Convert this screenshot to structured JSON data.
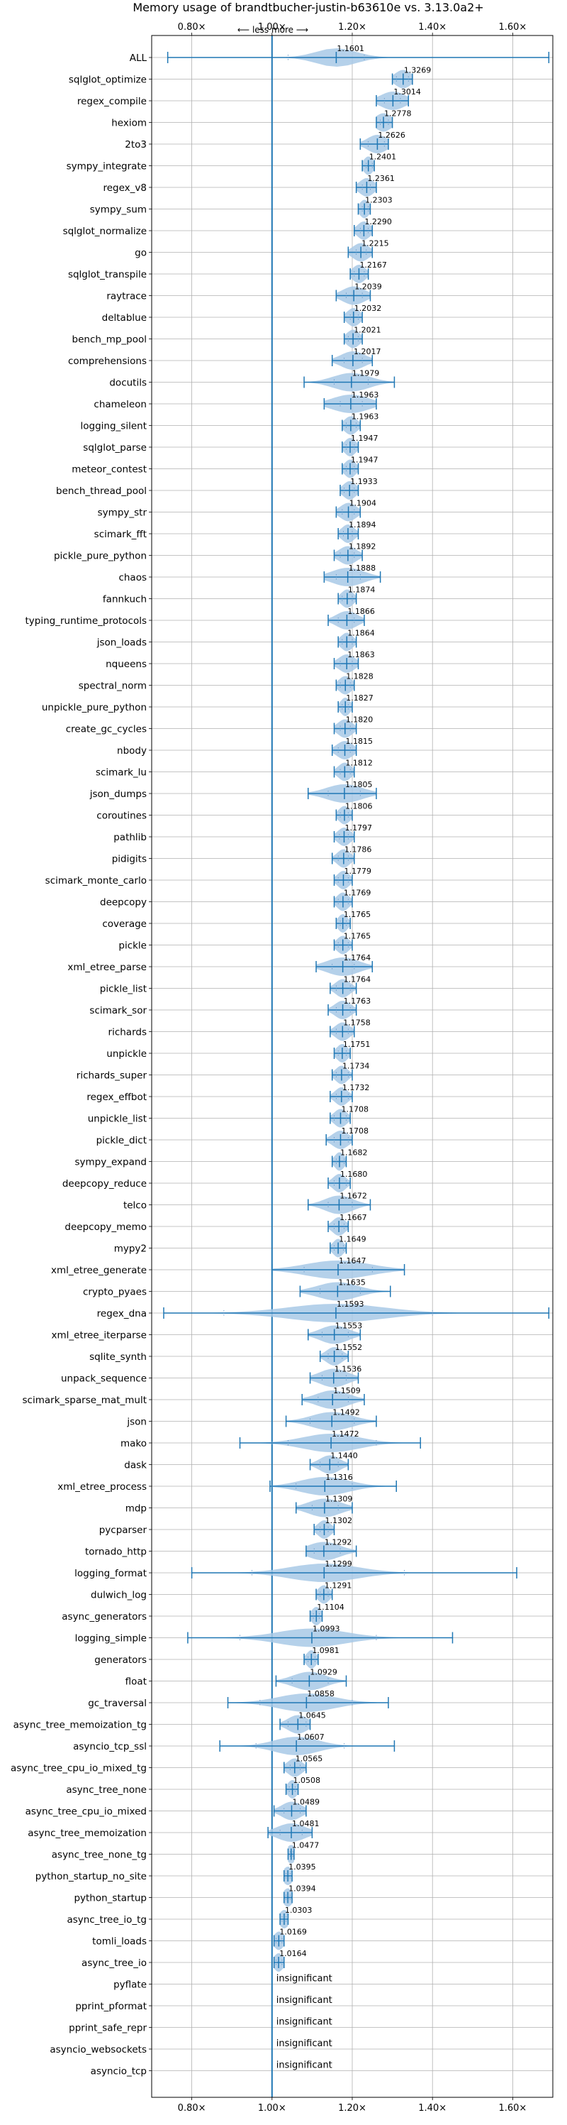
{
  "chart_data": {
    "type": "violin",
    "title": "Memory usage of brandtbucher-justin-b63610e vs. 3.13.0a2+",
    "direction_label": "⟵ less  more ⟶",
    "xlim": [
      0.7,
      1.7
    ],
    "ticks": [
      0.8,
      1.0,
      1.2,
      1.4,
      1.6
    ],
    "tick_labels": [
      "0.80×",
      "1.00×",
      "1.20×",
      "1.40×",
      "1.60×"
    ],
    "reference_x": 1.0,
    "insignificant_label": "insignificant",
    "colors": {
      "line": "#1f77b4",
      "fill": "#a8c9e6",
      "grid": "#b0b0b0",
      "text": "#000000"
    },
    "benchmarks": [
      {
        "name": "ALL",
        "value": 1.1601,
        "label": "1.1601",
        "min": 0.74,
        "max": 1.69,
        "q1": 1.04,
        "q3": 1.23,
        "spread": 0.05
      },
      {
        "name": "sqlglot_optimize",
        "value": 1.3269,
        "label": "1.3269",
        "min": 1.3,
        "max": 1.35,
        "q1": 1.31,
        "q3": 1.34,
        "spread": 0.02
      },
      {
        "name": "regex_compile",
        "value": 1.3014,
        "label": "1.3014",
        "min": 1.26,
        "max": 1.34,
        "q1": 1.28,
        "q3": 1.32,
        "spread": 0.03
      },
      {
        "name": "hexiom",
        "value": 1.2778,
        "label": "1.2778",
        "min": 1.26,
        "max": 1.3,
        "q1": 1.27,
        "q3": 1.29,
        "spread": 0.02
      },
      {
        "name": "2to3",
        "value": 1.2626,
        "label": "1.2626",
        "min": 1.22,
        "max": 1.29,
        "q1": 1.24,
        "q3": 1.28,
        "spread": 0.025
      },
      {
        "name": "sympy_integrate",
        "value": 1.2401,
        "label": "1.2401",
        "min": 1.225,
        "max": 1.255,
        "q1": 1.235,
        "q3": 1.25,
        "spread": 0.012
      },
      {
        "name": "regex_v8",
        "value": 1.2361,
        "label": "1.2361",
        "min": 1.21,
        "max": 1.26,
        "q1": 1.225,
        "q3": 1.245,
        "spread": 0.018
      },
      {
        "name": "sympy_sum",
        "value": 1.2303,
        "label": "1.2303",
        "min": 1.215,
        "max": 1.245,
        "q1": 1.225,
        "q3": 1.24,
        "spread": 0.012
      },
      {
        "name": "sqlglot_normalize",
        "value": 1.229,
        "label": "1.2290",
        "min": 1.205,
        "max": 1.25,
        "q1": 1.22,
        "q3": 1.24,
        "spread": 0.016
      },
      {
        "name": "go",
        "value": 1.2215,
        "label": "1.2215",
        "min": 1.19,
        "max": 1.25,
        "q1": 1.21,
        "q3": 1.235,
        "spread": 0.02
      },
      {
        "name": "sqlglot_transpile",
        "value": 1.2167,
        "label": "1.2167",
        "min": 1.195,
        "max": 1.24,
        "q1": 1.205,
        "q3": 1.23,
        "spread": 0.016
      },
      {
        "name": "raytrace",
        "value": 1.2039,
        "label": "1.2039",
        "min": 1.16,
        "max": 1.245,
        "q1": 1.185,
        "q3": 1.225,
        "spread": 0.028
      },
      {
        "name": "deltablue",
        "value": 1.2032,
        "label": "1.2032",
        "min": 1.18,
        "max": 1.225,
        "q1": 1.195,
        "q3": 1.215,
        "spread": 0.016
      },
      {
        "name": "bench_mp_pool",
        "value": 1.2021,
        "label": "1.2021",
        "min": 1.18,
        "max": 1.225,
        "q1": 1.19,
        "q3": 1.215,
        "spread": 0.016
      },
      {
        "name": "comprehensions",
        "value": 1.2017,
        "label": "1.2017",
        "min": 1.15,
        "max": 1.25,
        "q1": 1.18,
        "q3": 1.225,
        "spread": 0.03
      },
      {
        "name": "docutils",
        "value": 1.1979,
        "label": "1.1979",
        "min": 1.08,
        "max": 1.305,
        "q1": 1.155,
        "q3": 1.24,
        "spread": 0.045
      },
      {
        "name": "chameleon",
        "value": 1.1963,
        "label": "1.1963",
        "min": 1.13,
        "max": 1.26,
        "q1": 1.17,
        "q3": 1.225,
        "spread": 0.045
      },
      {
        "name": "logging_silent",
        "value": 1.1963,
        "label": "1.1963",
        "min": 1.175,
        "max": 1.22,
        "q1": 1.185,
        "q3": 1.21,
        "spread": 0.016
      },
      {
        "name": "sqlglot_parse",
        "value": 1.1947,
        "label": "1.1947",
        "min": 1.175,
        "max": 1.215,
        "q1": 1.185,
        "q3": 1.205,
        "spread": 0.014
      },
      {
        "name": "meteor_contest",
        "value": 1.1947,
        "label": "1.1947",
        "min": 1.175,
        "max": 1.215,
        "q1": 1.185,
        "q3": 1.205,
        "spread": 0.014
      },
      {
        "name": "bench_thread_pool",
        "value": 1.1933,
        "label": "1.1933",
        "min": 1.17,
        "max": 1.215,
        "q1": 1.18,
        "q3": 1.205,
        "spread": 0.016
      },
      {
        "name": "sympy_str",
        "value": 1.1904,
        "label": "1.1904",
        "min": 1.16,
        "max": 1.22,
        "q1": 1.175,
        "q3": 1.205,
        "spread": 0.02
      },
      {
        "name": "scimark_fft",
        "value": 1.1894,
        "label": "1.1894",
        "min": 1.165,
        "max": 1.215,
        "q1": 1.178,
        "q3": 1.2,
        "spread": 0.016
      },
      {
        "name": "pickle_pure_python",
        "value": 1.1892,
        "label": "1.1892",
        "min": 1.155,
        "max": 1.225,
        "q1": 1.17,
        "q3": 1.205,
        "spread": 0.022
      },
      {
        "name": "chaos",
        "value": 1.1888,
        "label": "1.1888",
        "min": 1.13,
        "max": 1.27,
        "q1": 1.16,
        "q3": 1.22,
        "spread": 0.04
      },
      {
        "name": "fannkuch",
        "value": 1.1874,
        "label": "1.1874",
        "min": 1.165,
        "max": 1.21,
        "q1": 1.175,
        "q3": 1.2,
        "spread": 0.015
      },
      {
        "name": "typing_runtime_protocols",
        "value": 1.1866,
        "label": "1.1866",
        "min": 1.14,
        "max": 1.23,
        "q1": 1.165,
        "q3": 1.205,
        "spread": 0.026
      },
      {
        "name": "json_loads",
        "value": 1.1864,
        "label": "1.1864",
        "min": 1.165,
        "max": 1.21,
        "q1": 1.175,
        "q3": 1.2,
        "spread": 0.015
      },
      {
        "name": "nqueens",
        "value": 1.1863,
        "label": "1.1863",
        "min": 1.155,
        "max": 1.215,
        "q1": 1.17,
        "q3": 1.2,
        "spread": 0.02
      },
      {
        "name": "spectral_norm",
        "value": 1.1828,
        "label": "1.1828",
        "min": 1.16,
        "max": 1.205,
        "q1": 1.17,
        "q3": 1.195,
        "spread": 0.016
      },
      {
        "name": "unpickle_pure_python",
        "value": 1.1827,
        "label": "1.1827",
        "min": 1.165,
        "max": 1.2,
        "q1": 1.175,
        "q3": 1.19,
        "spread": 0.012
      },
      {
        "name": "create_gc_cycles",
        "value": 1.182,
        "label": "1.1820",
        "min": 1.155,
        "max": 1.21,
        "q1": 1.17,
        "q3": 1.195,
        "spread": 0.018
      },
      {
        "name": "nbody",
        "value": 1.1815,
        "label": "1.1815",
        "min": 1.15,
        "max": 1.21,
        "q1": 1.165,
        "q3": 1.195,
        "spread": 0.02
      },
      {
        "name": "scimark_lu",
        "value": 1.1812,
        "label": "1.1812",
        "min": 1.155,
        "max": 1.205,
        "q1": 1.17,
        "q3": 1.195,
        "spread": 0.016
      },
      {
        "name": "json_dumps",
        "value": 1.1805,
        "label": "1.1805",
        "min": 1.09,
        "max": 1.26,
        "q1": 1.14,
        "q3": 1.22,
        "spread": 0.045
      },
      {
        "name": "coroutines",
        "value": 1.1806,
        "label": "1.1806",
        "min": 1.16,
        "max": 1.2,
        "q1": 1.17,
        "q3": 1.19,
        "spread": 0.014
      },
      {
        "name": "pathlib",
        "value": 1.1797,
        "label": "1.1797",
        "min": 1.155,
        "max": 1.205,
        "q1": 1.168,
        "q3": 1.19,
        "spread": 0.016
      },
      {
        "name": "pidigits",
        "value": 1.1786,
        "label": "1.1786",
        "min": 1.15,
        "max": 1.205,
        "q1": 1.165,
        "q3": 1.19,
        "spread": 0.016
      },
      {
        "name": "scimark_monte_carlo",
        "value": 1.1779,
        "label": "1.1779",
        "min": 1.155,
        "max": 1.2,
        "q1": 1.165,
        "q3": 1.19,
        "spread": 0.015
      },
      {
        "name": "deepcopy",
        "value": 1.1769,
        "label": "1.1769",
        "min": 1.155,
        "max": 1.2,
        "q1": 1.165,
        "q3": 1.19,
        "spread": 0.015
      },
      {
        "name": "coverage",
        "value": 1.1765,
        "label": "1.1765",
        "min": 1.16,
        "max": 1.195,
        "q1": 1.17,
        "q3": 1.185,
        "spread": 0.012
      },
      {
        "name": "pickle",
        "value": 1.1765,
        "label": "1.1765",
        "min": 1.155,
        "max": 1.2,
        "q1": 1.165,
        "q3": 1.19,
        "spread": 0.015
      },
      {
        "name": "xml_etree_parse",
        "value": 1.1764,
        "label": "1.1764",
        "min": 1.11,
        "max": 1.25,
        "q1": 1.15,
        "q3": 1.205,
        "spread": 0.04
      },
      {
        "name": "pickle_list",
        "value": 1.1764,
        "label": "1.1764",
        "min": 1.145,
        "max": 1.21,
        "q1": 1.16,
        "q3": 1.195,
        "spread": 0.018
      },
      {
        "name": "scimark_sor",
        "value": 1.1763,
        "label": "1.1763",
        "min": 1.14,
        "max": 1.21,
        "q1": 1.16,
        "q3": 1.195,
        "spread": 0.02
      },
      {
        "name": "richards",
        "value": 1.1758,
        "label": "1.1758",
        "min": 1.145,
        "max": 1.205,
        "q1": 1.16,
        "q3": 1.19,
        "spread": 0.018
      },
      {
        "name": "unpickle",
        "value": 1.1751,
        "label": "1.1751",
        "min": 1.155,
        "max": 1.195,
        "q1": 1.165,
        "q3": 1.185,
        "spread": 0.014
      },
      {
        "name": "richards_super",
        "value": 1.1734,
        "label": "1.1734",
        "min": 1.15,
        "max": 1.2,
        "q1": 1.16,
        "q3": 1.19,
        "spread": 0.015
      },
      {
        "name": "regex_effbot",
        "value": 1.1732,
        "label": "1.1732",
        "min": 1.145,
        "max": 1.2,
        "q1": 1.16,
        "q3": 1.19,
        "spread": 0.016
      },
      {
        "name": "unpickle_list",
        "value": 1.1708,
        "label": "1.1708",
        "min": 1.145,
        "max": 1.195,
        "q1": 1.155,
        "q3": 1.185,
        "spread": 0.016
      },
      {
        "name": "pickle_dict",
        "value": 1.1708,
        "label": "1.1708",
        "min": 1.135,
        "max": 1.2,
        "q1": 1.155,
        "q3": 1.19,
        "spread": 0.02
      },
      {
        "name": "sympy_expand",
        "value": 1.1682,
        "label": "1.1682",
        "min": 1.15,
        "max": 1.185,
        "q1": 1.16,
        "q3": 1.18,
        "spread": 0.012
      },
      {
        "name": "deepcopy_reduce",
        "value": 1.168,
        "label": "1.1680",
        "min": 1.14,
        "max": 1.195,
        "q1": 1.155,
        "q3": 1.185,
        "spread": 0.016
      },
      {
        "name": "telco",
        "value": 1.1672,
        "label": "1.1672",
        "min": 1.09,
        "max": 1.245,
        "q1": 1.14,
        "q3": 1.2,
        "spread": 0.035
      },
      {
        "name": "deepcopy_memo",
        "value": 1.1667,
        "label": "1.1667",
        "min": 1.14,
        "max": 1.19,
        "q1": 1.155,
        "q3": 1.18,
        "spread": 0.016
      },
      {
        "name": "mypy2",
        "value": 1.1649,
        "label": "1.1649",
        "min": 1.145,
        "max": 1.185,
        "q1": 1.155,
        "q3": 1.178,
        "spread": 0.013
      },
      {
        "name": "xml_etree_generate",
        "value": 1.1647,
        "label": "1.1647",
        "min": 1.0,
        "max": 1.33,
        "q1": 1.08,
        "q3": 1.25,
        "spread": 0.08
      },
      {
        "name": "crypto_pyaes",
        "value": 1.1635,
        "label": "1.1635",
        "min": 1.07,
        "max": 1.295,
        "q1": 1.12,
        "q3": 1.22,
        "spread": 0.05
      },
      {
        "name": "regex_dna",
        "value": 1.1593,
        "label": "1.1593",
        "min": 0.73,
        "max": 1.69,
        "q1": 0.88,
        "q3": 1.4,
        "spread": 0.12
      },
      {
        "name": "xml_etree_iterparse",
        "value": 1.1553,
        "label": "1.1553",
        "min": 1.09,
        "max": 1.22,
        "q1": 1.125,
        "q3": 1.19,
        "spread": 0.035
      },
      {
        "name": "sqlite_synth",
        "value": 1.1552,
        "label": "1.1552",
        "min": 1.12,
        "max": 1.19,
        "q1": 1.14,
        "q3": 1.175,
        "spread": 0.02
      },
      {
        "name": "unpack_sequence",
        "value": 1.1536,
        "label": "1.1536",
        "min": 1.095,
        "max": 1.215,
        "q1": 1.125,
        "q3": 1.185,
        "spread": 0.035
      },
      {
        "name": "scimark_sparse_mat_mult",
        "value": 1.1509,
        "label": "1.1509",
        "min": 1.075,
        "max": 1.23,
        "q1": 1.115,
        "q3": 1.19,
        "spread": 0.04
      },
      {
        "name": "json",
        "value": 1.1492,
        "label": "1.1492",
        "min": 1.035,
        "max": 1.26,
        "q1": 1.095,
        "q3": 1.205,
        "spread": 0.05
      },
      {
        "name": "mako",
        "value": 1.1472,
        "label": "1.1472",
        "min": 0.92,
        "max": 1.37,
        "q1": 1.04,
        "q3": 1.26,
        "spread": 0.07
      },
      {
        "name": "dask",
        "value": 1.144,
        "label": "1.1440",
        "min": 1.095,
        "max": 1.19,
        "q1": 1.12,
        "q3": 1.165,
        "spread": 0.025
      },
      {
        "name": "xml_etree_process",
        "value": 1.1316,
        "label": "1.1316",
        "min": 0.995,
        "max": 1.31,
        "q1": 1.06,
        "q3": 1.2,
        "spread": 0.06
      },
      {
        "name": "mdp",
        "value": 1.1309,
        "label": "1.1309",
        "min": 1.06,
        "max": 1.2,
        "q1": 1.1,
        "q3": 1.165,
        "spread": 0.04
      },
      {
        "name": "pycparser",
        "value": 1.1302,
        "label": "1.1302",
        "min": 1.105,
        "max": 1.155,
        "q1": 1.12,
        "q3": 1.14,
        "spread": 0.016
      },
      {
        "name": "tornado_http",
        "value": 1.1292,
        "label": "1.1292",
        "min": 1.085,
        "max": 1.21,
        "q1": 1.105,
        "q3": 1.17,
        "spread": 0.04
      },
      {
        "name": "logging_format",
        "value": 1.1299,
        "label": "1.1299",
        "min": 0.8,
        "max": 1.61,
        "q1": 0.95,
        "q3": 1.33,
        "spread": 0.085
      },
      {
        "name": "dulwich_log",
        "value": 1.1291,
        "label": "1.1291",
        "min": 1.11,
        "max": 1.15,
        "q1": 1.12,
        "q3": 1.14,
        "spread": 0.014
      },
      {
        "name": "async_generators",
        "value": 1.1104,
        "label": "1.1104",
        "min": 1.095,
        "max": 1.125,
        "q1": 1.103,
        "q3": 1.118,
        "spread": 0.012
      },
      {
        "name": "logging_simple",
        "value": 1.0993,
        "label": "1.0993",
        "min": 0.79,
        "max": 1.45,
        "q1": 0.92,
        "q3": 1.26,
        "spread": 0.085
      },
      {
        "name": "generators",
        "value": 1.0981,
        "label": "1.0981",
        "min": 1.08,
        "max": 1.115,
        "q1": 1.09,
        "q3": 1.107,
        "spread": 0.012
      },
      {
        "name": "float",
        "value": 1.0929,
        "label": "1.0929",
        "min": 1.01,
        "max": 1.185,
        "q1": 1.05,
        "q3": 1.14,
        "spread": 0.04
      },
      {
        "name": "gc_traversal",
        "value": 1.0858,
        "label": "1.0858",
        "min": 0.89,
        "max": 1.29,
        "q1": 0.97,
        "q3": 1.2,
        "spread": 0.07
      },
      {
        "name": "async_tree_memoization_tg",
        "value": 1.0645,
        "label": "1.0645",
        "min": 1.02,
        "max": 1.095,
        "q1": 1.04,
        "q3": 1.085,
        "spread": 0.025
      },
      {
        "name": "asyncio_tcp_ssl",
        "value": 1.0607,
        "label": "1.0607",
        "min": 0.87,
        "max": 1.305,
        "q1": 0.96,
        "q3": 1.18,
        "spread": 0.055
      },
      {
        "name": "async_tree_cpu_io_mixed_tg",
        "value": 1.0565,
        "label": "1.0565",
        "min": 1.03,
        "max": 1.085,
        "q1": 1.045,
        "q3": 1.07,
        "spread": 0.018
      },
      {
        "name": "async_tree_none",
        "value": 1.0508,
        "label": "1.0508",
        "min": 1.035,
        "max": 1.065,
        "q1": 1.043,
        "q3": 1.058,
        "spread": 0.012
      },
      {
        "name": "async_tree_cpu_io_mixed",
        "value": 1.0489,
        "label": "1.0489",
        "min": 1.005,
        "max": 1.085,
        "q1": 1.03,
        "q3": 1.07,
        "spread": 0.025
      },
      {
        "name": "async_tree_memoization",
        "value": 1.0481,
        "label": "1.0481",
        "min": 0.99,
        "max": 1.1,
        "q1": 1.02,
        "q3": 1.075,
        "spread": 0.035
      },
      {
        "name": "async_tree_none_tg",
        "value": 1.0477,
        "label": "1.0477",
        "min": 1.04,
        "max": 1.055,
        "q1": 1.045,
        "q3": 1.052,
        "spread": 0.012
      },
      {
        "name": "python_startup_no_site",
        "value": 1.0395,
        "label": "1.0395",
        "min": 1.03,
        "max": 1.05,
        "q1": 1.035,
        "q3": 1.045,
        "spread": 0.012
      },
      {
        "name": "python_startup",
        "value": 1.0394,
        "label": "1.0394",
        "min": 1.03,
        "max": 1.05,
        "q1": 1.035,
        "q3": 1.045,
        "spread": 0.012
      },
      {
        "name": "async_tree_io_tg",
        "value": 1.0303,
        "label": "1.0303",
        "min": 1.02,
        "max": 1.04,
        "q1": 1.025,
        "q3": 1.035,
        "spread": 0.012
      },
      {
        "name": "tomli_loads",
        "value": 1.0169,
        "label": "1.0169",
        "min": 1.005,
        "max": 1.03,
        "q1": 1.01,
        "q3": 1.025,
        "spread": 0.012
      },
      {
        "name": "async_tree_io",
        "value": 1.0164,
        "label": "1.0164",
        "min": 1.005,
        "max": 1.03,
        "q1": 1.01,
        "q3": 1.025,
        "spread": 0.012
      },
      {
        "name": "pyflate",
        "insignificant": true
      },
      {
        "name": "pprint_pformat",
        "insignificant": true
      },
      {
        "name": "pprint_safe_repr",
        "insignificant": true
      },
      {
        "name": "asyncio_websockets",
        "insignificant": true
      },
      {
        "name": "asyncio_tcp",
        "insignificant": true
      }
    ]
  }
}
